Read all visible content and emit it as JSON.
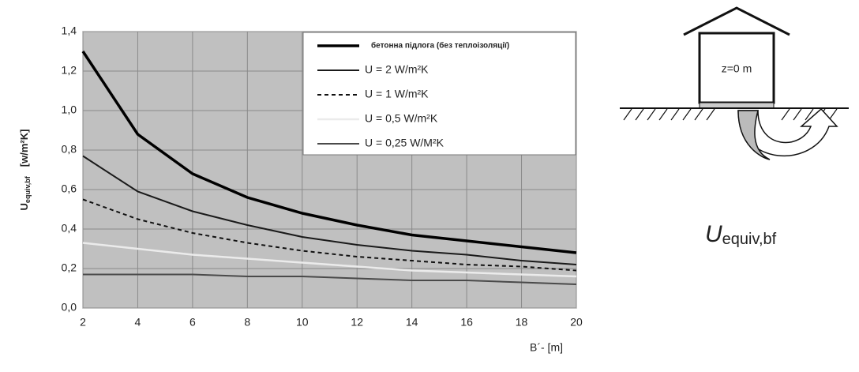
{
  "chart_data": {
    "type": "line",
    "y_label": {
      "main": "U",
      "sub": "equiv,bf",
      "unit": "[w/m²K]"
    },
    "x_label": "B´-  [m]",
    "x": [
      2,
      4,
      6,
      8,
      10,
      12,
      14,
      16,
      18,
      20
    ],
    "xlim": [
      2,
      20
    ],
    "xticks": [
      2,
      4,
      6,
      8,
      10,
      12,
      14,
      16,
      18,
      20
    ],
    "ylim": [
      0,
      1.4
    ],
    "yticks": [
      {
        "value": 0,
        "label": "0,0"
      },
      {
        "value": 0.2,
        "label": "0,2"
      },
      {
        "value": 0.4,
        "label": "0,4"
      },
      {
        "value": 0.6,
        "label": "0,6"
      },
      {
        "value": 0.8,
        "label": "0,8"
      },
      {
        "value": 1.0,
        "label": "1,0"
      },
      {
        "value": 1.2,
        "label": "1,2"
      },
      {
        "value": 1.4,
        "label": "1,4"
      }
    ],
    "grid": true,
    "legend": "upper right",
    "series": [
      {
        "name": "бетонна підлога (без теплоізоляції)",
        "color": "#000000",
        "width": 3.5,
        "dash": "none",
        "values": [
          1.3,
          0.88,
          0.68,
          0.56,
          0.48,
          0.42,
          0.37,
          0.34,
          0.31,
          0.28
        ]
      },
      {
        "name": "U = 2 W/m²K",
        "color": "#1a1a1a",
        "width": 2,
        "dash": "none",
        "values": [
          0.77,
          0.59,
          0.49,
          0.42,
          0.36,
          0.32,
          0.29,
          0.27,
          0.24,
          0.22
        ]
      },
      {
        "name": "U = 1 W/m²K",
        "color": "#111111",
        "width": 2,
        "dash": "5,4",
        "values": [
          0.55,
          0.45,
          0.38,
          0.33,
          0.29,
          0.26,
          0.24,
          0.22,
          0.21,
          0.19
        ]
      },
      {
        "name": "U = 0,5 W/m²K",
        "color": "#ebebeb",
        "width": 2.5,
        "dash": "none",
        "values": [
          0.33,
          0.3,
          0.27,
          0.25,
          0.23,
          0.21,
          0.19,
          0.18,
          0.17,
          0.16
        ]
      },
      {
        "name": "U = 0,25 W/M²K",
        "color": "#4a4a4a",
        "width": 2,
        "dash": "none",
        "values": [
          0.17,
          0.17,
          0.17,
          0.16,
          0.16,
          0.15,
          0.14,
          0.14,
          0.13,
          0.12
        ]
      }
    ]
  },
  "diagram": {
    "label": "z=0 m",
    "caption": {
      "main": "U",
      "sub": "equiv,bf"
    }
  }
}
